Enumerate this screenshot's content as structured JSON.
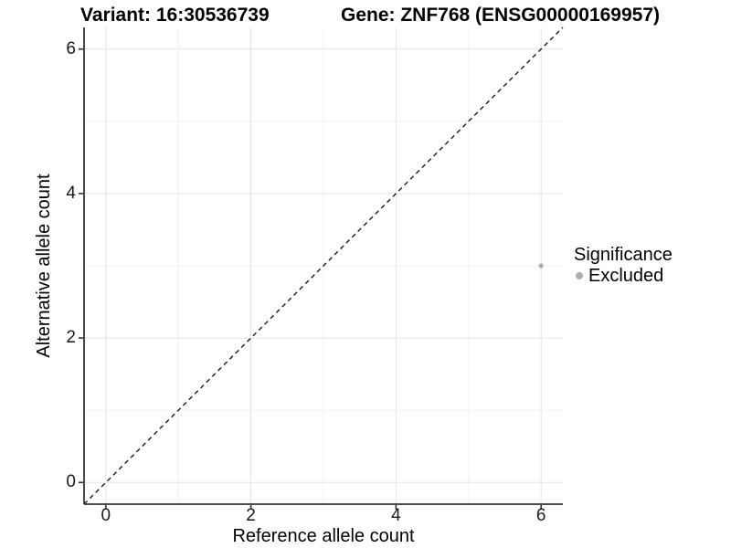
{
  "chart_data": {
    "type": "scatter",
    "title_left": "Variant: 16:30536739",
    "title_right": "Gene: ZNF768 (ENSG00000169957)",
    "xlabel": "Reference allele count",
    "ylabel": "Alternative allele count",
    "xlim": [
      -0.3,
      6.3
    ],
    "ylim": [
      -0.3,
      6.3
    ],
    "x_ticks": [
      0,
      2,
      4,
      6
    ],
    "y_ticks": [
      0,
      2,
      4,
      6
    ],
    "x_minor_ticks": [
      1,
      3,
      5
    ],
    "y_minor_ticks": [
      1,
      3,
      5
    ],
    "grid": "major+minor",
    "legend_position": "right",
    "legend_title": "Significance",
    "series": [
      {
        "name": "Excluded",
        "color": "#adadad",
        "marker": "circle",
        "points": [
          {
            "x": 6,
            "y": 3
          }
        ]
      }
    ],
    "reference_line": {
      "slope": 1,
      "intercept": 0,
      "linetype": "dashed",
      "color": "#1a1a1a"
    }
  },
  "colors": {
    "background": "#ffffff",
    "grid_major": "#e4e4e4",
    "grid_minor": "#f1f1f1",
    "axis_line": "#333333",
    "tick_text": "#1a1a1a"
  }
}
